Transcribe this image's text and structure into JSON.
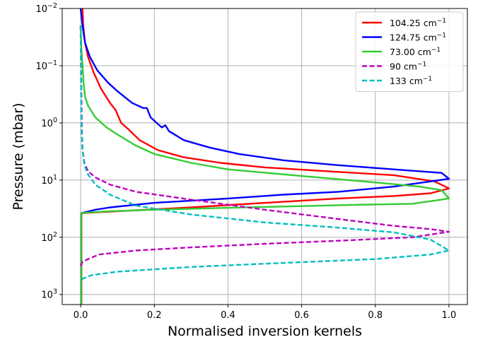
{
  "chart_data": {
    "type": "line",
    "title": "",
    "xlabel": "Normalised inversion kernels",
    "ylabel": "Pressure (mbar)",
    "xlim": [
      -0.05,
      1.05
    ],
    "ylim": [
      1500,
      0.01
    ],
    "yscale": "log",
    "y_inverted": true,
    "grid": true,
    "legend_position": "top-right",
    "x_ticks": [
      {
        "value": 0.0,
        "label": "0.0"
      },
      {
        "value": 0.2,
        "label": "0.2"
      },
      {
        "value": 0.4,
        "label": "0.4"
      },
      {
        "value": 0.6,
        "label": "0.6"
      },
      {
        "value": 0.8,
        "label": "0.8"
      },
      {
        "value": 1.0,
        "label": "1.0"
      }
    ],
    "y_ticks": [
      {
        "value": 0.01,
        "base": "10",
        "exp": "−2"
      },
      {
        "value": 0.1,
        "base": "10",
        "exp": "−1"
      },
      {
        "value": 1,
        "base": "10",
        "exp": "0"
      },
      {
        "value": 10,
        "base": "10",
        "exp": "1"
      },
      {
        "value": 100,
        "base": "10",
        "exp": "2"
      },
      {
        "value": 1000,
        "base": "10",
        "exp": "3"
      }
    ],
    "series": [
      {
        "name": "104.25 cm",
        "unit_sup": "−1",
        "color": "#ff0000",
        "dash": false,
        "points": [
          [
            0.005,
            0.01
          ],
          [
            0.007,
            0.02
          ],
          [
            0.012,
            0.04
          ],
          [
            0.02,
            0.07
          ],
          [
            0.035,
            0.13
          ],
          [
            0.055,
            0.25
          ],
          [
            0.08,
            0.45
          ],
          [
            0.095,
            0.6
          ],
          [
            0.11,
            1.0
          ],
          [
            0.13,
            1.3
          ],
          [
            0.16,
            2.0
          ],
          [
            0.21,
            3.0
          ],
          [
            0.28,
            4.0
          ],
          [
            0.38,
            5.0
          ],
          [
            0.5,
            6.0
          ],
          [
            0.7,
            7.2
          ],
          [
            0.85,
            8.2
          ],
          [
            0.96,
            10.5
          ],
          [
            1.0,
            14.0
          ],
          [
            0.95,
            17.0
          ],
          [
            0.85,
            19.0
          ],
          [
            0.7,
            21.0
          ],
          [
            0.5,
            25.0
          ],
          [
            0.3,
            30.0
          ],
          [
            0.1,
            35.0
          ],
          [
            0.03,
            37.0
          ],
          [
            0.002,
            38.0
          ],
          [
            0.002,
            1500
          ]
        ]
      },
      {
        "name": "124.75 cm",
        "unit_sup": "−1",
        "color": "#0000ff",
        "dash": false,
        "points": [
          [
            0.0,
            0.01
          ],
          [
            0.005,
            0.02
          ],
          [
            0.012,
            0.04
          ],
          [
            0.025,
            0.07
          ],
          [
            0.045,
            0.12
          ],
          [
            0.075,
            0.2
          ],
          [
            0.1,
            0.28
          ],
          [
            0.14,
            0.45
          ],
          [
            0.17,
            0.55
          ],
          [
            0.18,
            0.55
          ],
          [
            0.19,
            0.8
          ],
          [
            0.22,
            1.2
          ],
          [
            0.23,
            1.1
          ],
          [
            0.24,
            1.4
          ],
          [
            0.28,
            2.0
          ],
          [
            0.35,
            2.7
          ],
          [
            0.43,
            3.5
          ],
          [
            0.55,
            4.5
          ],
          [
            0.7,
            5.5
          ],
          [
            0.85,
            6.5
          ],
          [
            0.98,
            7.5
          ],
          [
            1.0,
            9.5
          ],
          [
            0.85,
            13.0
          ],
          [
            0.7,
            16.0
          ],
          [
            0.55,
            18.0
          ],
          [
            0.4,
            21.0
          ],
          [
            0.2,
            25.0
          ],
          [
            0.08,
            30.0
          ],
          [
            0.04,
            33.0
          ],
          [
            0.001,
            38.0
          ],
          [
            0.001,
            1500
          ]
        ]
      },
      {
        "name": "73.00 cm",
        "unit_sup": "−1",
        "color": "#33cc33",
        "dash": false,
        "points": [
          [
            0.0,
            0.02
          ],
          [
            0.002,
            0.05
          ],
          [
            0.005,
            0.1
          ],
          [
            0.008,
            0.2
          ],
          [
            0.012,
            0.35
          ],
          [
            0.02,
            0.5
          ],
          [
            0.04,
            0.8
          ],
          [
            0.07,
            1.2
          ],
          [
            0.1,
            1.6
          ],
          [
            0.15,
            2.5
          ],
          [
            0.2,
            3.5
          ],
          [
            0.3,
            5.0
          ],
          [
            0.4,
            6.5
          ],
          [
            0.6,
            8.5
          ],
          [
            0.8,
            11.0
          ],
          [
            0.92,
            13.0
          ],
          [
            0.98,
            15.0
          ],
          [
            1.0,
            21.0
          ],
          [
            0.9,
            26.0
          ],
          [
            0.75,
            27.0
          ],
          [
            0.6,
            28.5
          ],
          [
            0.4,
            30.5
          ],
          [
            0.2,
            33.0
          ],
          [
            0.08,
            35.0
          ],
          [
            0.02,
            37.0
          ],
          [
            0.001,
            38.0
          ],
          [
            0.001,
            1500
          ]
        ]
      },
      {
        "name": "90 cm",
        "unit_sup": "−1",
        "color": "#bf00bf",
        "dash": true,
        "points": [
          [
            0.0,
            0.02
          ],
          [
            0.003,
            1.0
          ],
          [
            0.005,
            3.0
          ],
          [
            0.01,
            5.0
          ],
          [
            0.02,
            7.0
          ],
          [
            0.04,
            9.0
          ],
          [
            0.08,
            12.0
          ],
          [
            0.15,
            16.0
          ],
          [
            0.3,
            22.0
          ],
          [
            0.5,
            33.0
          ],
          [
            0.7,
            48.0
          ],
          [
            0.85,
            63.0
          ],
          [
            0.95,
            72.0
          ],
          [
            1.0,
            80.0
          ],
          [
            0.9,
            100.0
          ],
          [
            0.7,
            115.0
          ],
          [
            0.5,
            130.0
          ],
          [
            0.3,
            150.0
          ],
          [
            0.15,
            170.0
          ],
          [
            0.05,
            200.0
          ],
          [
            0.02,
            240.0
          ],
          [
            0.005,
            270.0
          ],
          [
            0.0,
            320.0
          ]
        ]
      },
      {
        "name": "133 cm",
        "unit_sup": "−1",
        "color": "#00bfbf",
        "dash": true,
        "points": [
          [
            0.0,
            0.02
          ],
          [
            0.002,
            1.0
          ],
          [
            0.005,
            3.0
          ],
          [
            0.01,
            5.5
          ],
          [
            0.02,
            8.0
          ],
          [
            0.04,
            12.0
          ],
          [
            0.08,
            18.0
          ],
          [
            0.15,
            28.0
          ],
          [
            0.3,
            40.0
          ],
          [
            0.5,
            55.0
          ],
          [
            0.7,
            68.0
          ],
          [
            0.85,
            82.0
          ],
          [
            0.95,
            110.0
          ],
          [
            1.0,
            170.0
          ],
          [
            0.95,
            200.0
          ],
          [
            0.8,
            240.0
          ],
          [
            0.5,
            290.0
          ],
          [
            0.3,
            330.0
          ],
          [
            0.1,
            400.0
          ],
          [
            0.03,
            460.0
          ],
          [
            0.005,
            530.0
          ],
          [
            0.0,
            620.0
          ]
        ]
      }
    ]
  }
}
